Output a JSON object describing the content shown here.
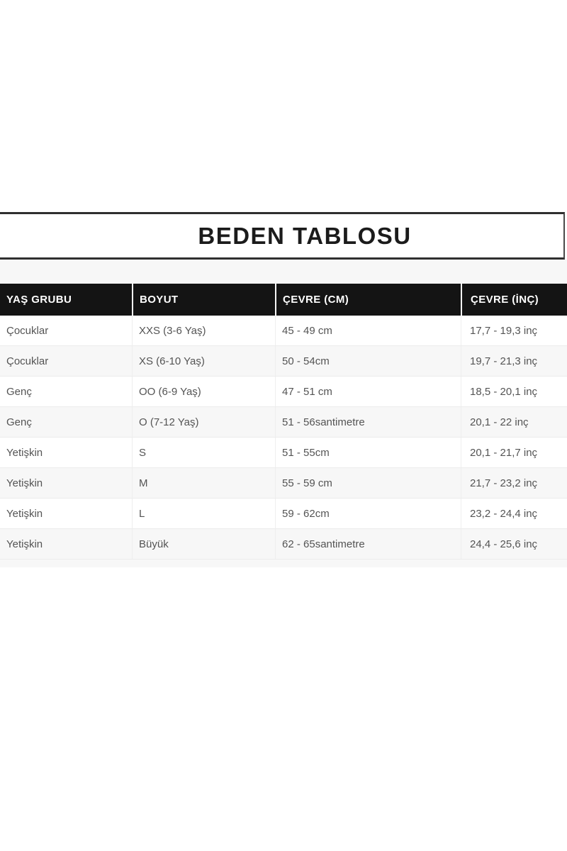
{
  "page": {
    "title": "BEDEN TABLOSU"
  },
  "size_table": {
    "columns": [
      "YAŞ GRUBU",
      "BOYUT",
      "ÇEVRE (CM)",
      "ÇEVRE (İNÇ)"
    ],
    "rows": [
      [
        "Çocuklar",
        "XXS (3-6 Yaş)",
        "45 - 49 cm",
        "17,7 - 19,3 inç"
      ],
      [
        "Çocuklar",
        "XS (6-10 Yaş)",
        "50 - 54cm",
        "19,7 - 21,3 inç"
      ],
      [
        "Genç",
        "OO (6-9 Yaş)",
        "47 - 51 cm",
        "18,5 - 20,1 inç"
      ],
      [
        "Genç",
        "O (7-12 Yaş)",
        "51 - 56santimetre",
        "20,1 - 22 inç"
      ],
      [
        "Yetişkin",
        "S",
        "51 - 55cm",
        "20,1 - 21,7 inç"
      ],
      [
        "Yetişkin",
        "M",
        "55 - 59 cm",
        "21,7 - 23,2 inç"
      ],
      [
        "Yetişkin",
        "L",
        "59 - 62cm",
        "23,2 - 24,4 inç"
      ],
      [
        "Yetişkin",
        "Büyük",
        "62 - 65santimetre",
        "24,4 - 25,6 inç"
      ]
    ]
  },
  "colors": {
    "title_text": "#1b1b1b",
    "title_rule": "#2f2f2f",
    "header_bg": "#141414",
    "header_text": "#ffffff",
    "body_text": "#545454",
    "row_separator": "#ececec",
    "row_alt_bg": "#f7f7f7",
    "page_bg": "#ffffff"
  }
}
